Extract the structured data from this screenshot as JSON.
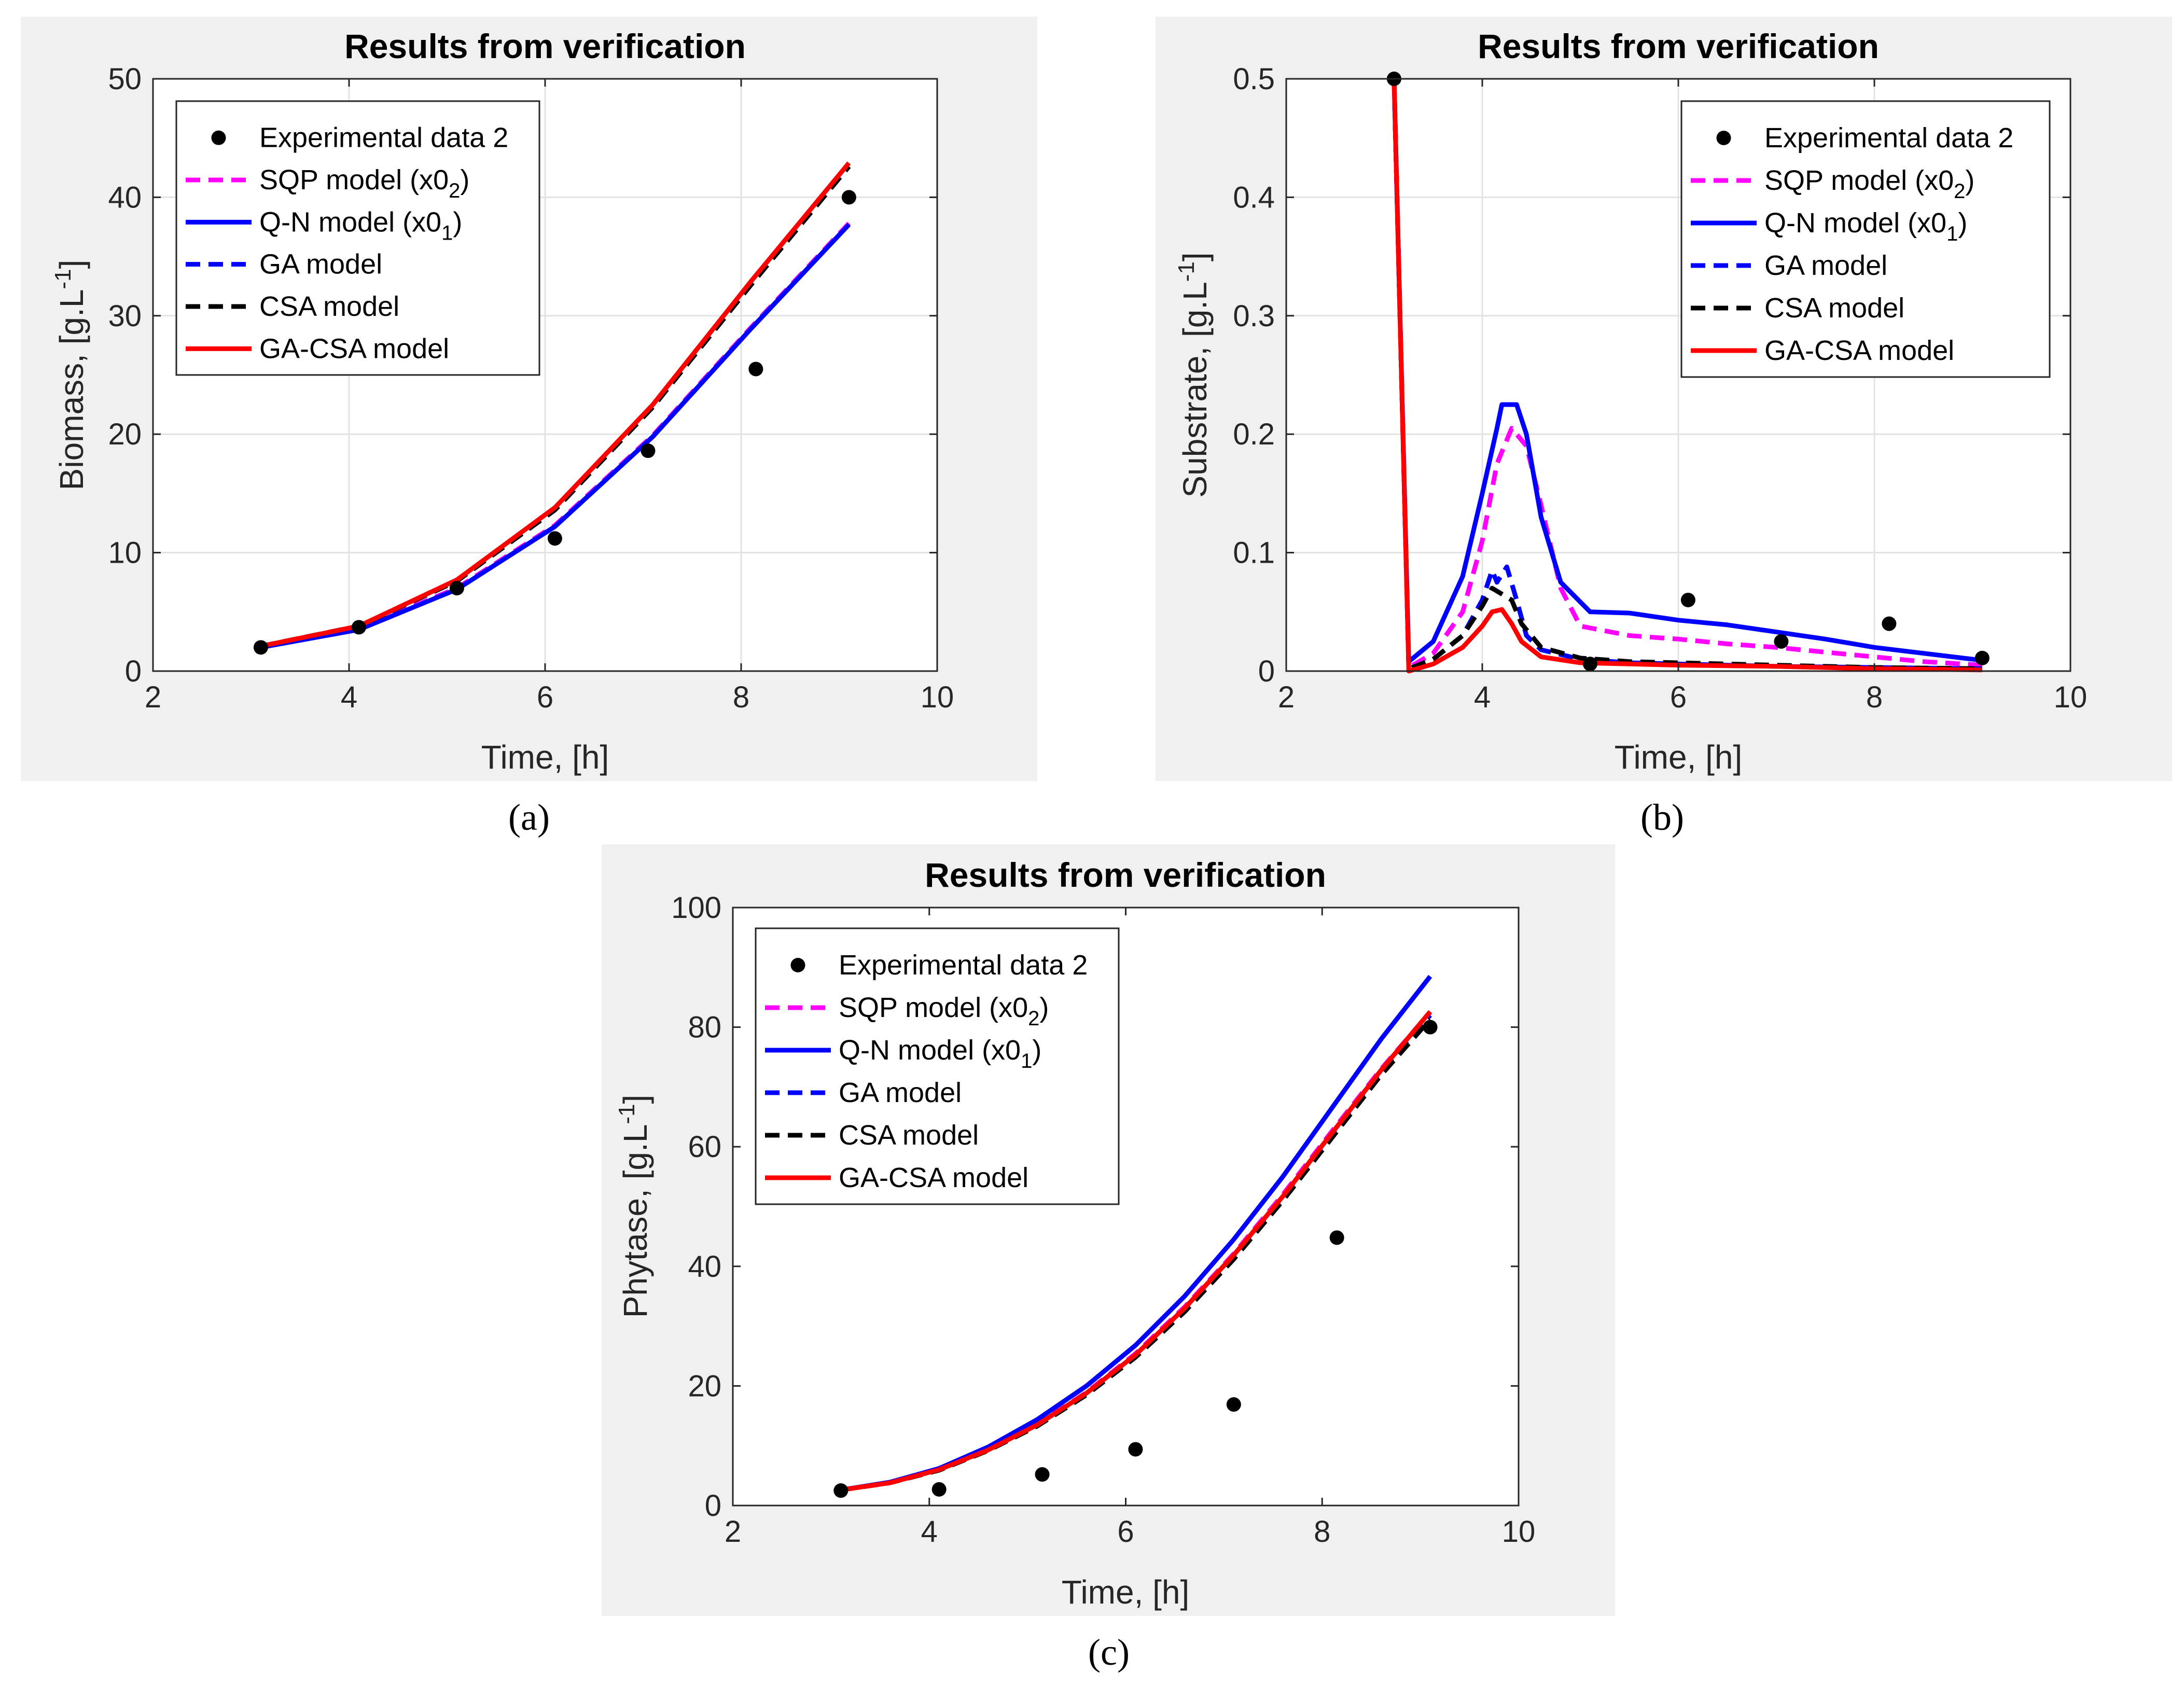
{
  "chart_data": [
    {
      "type": "line",
      "panel_label": "a",
      "title": "Results from verification",
      "xlabel": "Time, [h]",
      "ylabel": "Biomass, [g.L^-1]",
      "ylabel_text": "Biomass, [g.L",
      "ylabel_exp": "-1",
      "ylabel_close": "]",
      "xlim": [
        2,
        10
      ],
      "ylim": [
        0,
        50
      ],
      "xticks": [
        2,
        4,
        6,
        8,
        10
      ],
      "yticks": [
        0,
        10,
        20,
        30,
        40,
        50
      ],
      "grid": true,
      "legend_position": "top-left",
      "series": [
        {
          "name": "Experimental data 2",
          "style": "markers",
          "color": "#000000",
          "x": [
            3.1,
            4.1,
            5.1,
            6.1,
            7.05,
            8.15,
            9.1
          ],
          "y": [
            2.0,
            3.7,
            7.0,
            11.2,
            18.6,
            25.5,
            40.0
          ]
        },
        {
          "name": "SQP model (x0_2)",
          "style": "dashed",
          "color": "#ff00ff",
          "x": [
            3.1,
            4.1,
            5.1,
            6.1,
            7.1,
            8.1,
            9.1
          ],
          "y": [
            2.0,
            3.6,
            7.0,
            12.3,
            19.9,
            29.0,
            37.8
          ]
        },
        {
          "name": "Q-N model (x0_1)",
          "style": "solid",
          "color": "#0000ff",
          "x": [
            3.1,
            4.1,
            5.1,
            6.1,
            7.1,
            8.1,
            9.1
          ],
          "y": [
            2.0,
            3.5,
            6.9,
            12.2,
            19.8,
            28.9,
            37.7
          ]
        },
        {
          "name": "GA model",
          "style": "dashed",
          "color": "#0000ff",
          "x": [
            3.1,
            4.1,
            5.1,
            6.1,
            7.1,
            8.1,
            9.1
          ],
          "y": [
            2.1,
            3.8,
            7.6,
            13.6,
            22.3,
            32.6,
            42.6
          ]
        },
        {
          "name": "CSA model",
          "style": "dashed",
          "color": "#000000",
          "x": [
            3.1,
            4.1,
            5.1,
            6.1,
            7.1,
            8.1,
            9.1
          ],
          "y": [
            2.1,
            3.8,
            7.6,
            13.6,
            22.3,
            32.6,
            42.6
          ]
        },
        {
          "name": "GA-CSA model",
          "style": "solid",
          "color": "#ff0000",
          "x": [
            3.1,
            4.1,
            5.1,
            6.1,
            7.1,
            8.1,
            9.1
          ],
          "y": [
            2.1,
            3.8,
            7.7,
            13.8,
            22.5,
            32.9,
            42.9
          ]
        }
      ]
    },
    {
      "type": "line",
      "panel_label": "b",
      "title": "Results from verification",
      "xlabel": "Time, [h]",
      "ylabel": "Substrate, [g.L^-1]",
      "ylabel_text": "Substrate, [g.L",
      "ylabel_exp": "-1",
      "ylabel_close": "]",
      "xlim": [
        2,
        10
      ],
      "ylim": [
        0,
        0.5
      ],
      "xticks": [
        2,
        4,
        6,
        8,
        10
      ],
      "yticks": [
        0,
        0.1,
        0.2,
        0.3,
        0.4,
        0.5
      ],
      "grid": true,
      "legend_position": "top-right",
      "series": [
        {
          "name": "Experimental data 2",
          "style": "markers",
          "color": "#000000",
          "x": [
            3.1,
            5.1,
            6.1,
            7.05,
            8.15,
            9.1
          ],
          "y": [
            0.5,
            0.006,
            0.06,
            0.025,
            0.04,
            0.011
          ]
        },
        {
          "name": "SQP model (x0_2)",
          "style": "dashed",
          "color": "#ff00ff",
          "x": [
            3.1,
            3.25,
            3.5,
            3.8,
            4.0,
            4.15,
            4.3,
            4.45,
            4.6,
            4.8,
            5.0,
            5.5,
            6.0,
            6.5,
            7.0,
            7.5,
            8.0,
            8.5,
            9.1
          ],
          "y": [
            0.5,
            0.003,
            0.015,
            0.05,
            0.11,
            0.175,
            0.205,
            0.19,
            0.14,
            0.07,
            0.038,
            0.03,
            0.027,
            0.023,
            0.02,
            0.016,
            0.012,
            0.008,
            0.005
          ]
        },
        {
          "name": "Q-N model (x0_1)",
          "style": "solid",
          "color": "#0000ff",
          "x": [
            3.1,
            3.25,
            3.5,
            3.8,
            4.0,
            4.15,
            4.2,
            4.35,
            4.45,
            4.6,
            4.8,
            5.1,
            5.5,
            6.0,
            6.5,
            7.0,
            7.5,
            8.0,
            8.5,
            9.1
          ],
          "y": [
            0.5,
            0.008,
            0.025,
            0.08,
            0.15,
            0.205,
            0.225,
            0.225,
            0.2,
            0.13,
            0.075,
            0.05,
            0.049,
            0.043,
            0.039,
            0.033,
            0.027,
            0.02,
            0.015,
            0.009
          ]
        },
        {
          "name": "GA model",
          "style": "dashed",
          "color": "#0000ff",
          "x": [
            3.1,
            3.25,
            3.5,
            3.8,
            4.0,
            4.1,
            4.15,
            4.25,
            4.35,
            4.45,
            4.6,
            5.0,
            5.5,
            6.0,
            7.0,
            8.0,
            9.1
          ],
          "y": [
            0.5,
            0.002,
            0.01,
            0.03,
            0.06,
            0.085,
            0.075,
            0.088,
            0.06,
            0.03,
            0.018,
            0.01,
            0.007,
            0.006,
            0.004,
            0.003,
            0.002
          ]
        },
        {
          "name": "CSA model",
          "style": "dashed",
          "color": "#000000",
          "x": [
            3.1,
            3.25,
            3.5,
            3.8,
            4.0,
            4.1,
            4.2,
            4.3,
            4.4,
            4.6,
            5.0,
            5.5,
            6.0,
            7.0,
            8.0,
            9.1
          ],
          "y": [
            0.5,
            0.002,
            0.01,
            0.03,
            0.055,
            0.07,
            0.065,
            0.06,
            0.04,
            0.02,
            0.011,
            0.008,
            0.007,
            0.005,
            0.003,
            0.002
          ]
        },
        {
          "name": "GA-CSA model",
          "style": "solid",
          "color": "#ff0000",
          "x": [
            3.1,
            3.25,
            3.5,
            3.8,
            4.0,
            4.1,
            4.2,
            4.3,
            4.4,
            4.6,
            5.0,
            5.5,
            6.0,
            7.0,
            8.0,
            9.1
          ],
          "y": [
            0.5,
            0.0,
            0.006,
            0.02,
            0.038,
            0.05,
            0.052,
            0.04,
            0.025,
            0.012,
            0.007,
            0.006,
            0.005,
            0.004,
            0.002,
            0.001
          ]
        }
      ]
    },
    {
      "type": "line",
      "panel_label": "c",
      "title": "Results from verification",
      "xlabel": "Time, [h]",
      "ylabel": "Phytase, [g.L^-1]",
      "ylabel_text": "Phytase, [g.L",
      "ylabel_exp": "-1",
      "ylabel_close": "]",
      "xlim": [
        2,
        10
      ],
      "ylim": [
        0,
        100
      ],
      "xticks": [
        2,
        4,
        6,
        8,
        10
      ],
      "yticks": [
        0,
        20,
        40,
        60,
        80,
        100
      ],
      "grid": false,
      "legend_position": "top-left",
      "series": [
        {
          "name": "Experimental data 2",
          "style": "markers",
          "color": "#000000",
          "x": [
            3.1,
            4.1,
            5.15,
            6.1,
            7.1,
            8.15,
            9.1
          ],
          "y": [
            2.5,
            2.7,
            5.2,
            9.4,
            16.9,
            44.8,
            80.0
          ]
        },
        {
          "name": "SQP model (x0_2)",
          "style": "dashed",
          "color": "#ff00ff",
          "x": [
            3.1,
            3.6,
            4.1,
            4.6,
            5.1,
            5.6,
            6.1,
            6.6,
            7.1,
            7.6,
            8.1,
            8.6,
            9.1
          ],
          "y": [
            2.6,
            3.8,
            6.0,
            9.4,
            13.6,
            18.9,
            25.4,
            33.2,
            42.1,
            52.0,
            62.6,
            73.0,
            82.5
          ]
        },
        {
          "name": "Q-N model (x0_1)",
          "style": "solid",
          "color": "#0000ff",
          "x": [
            3.1,
            3.6,
            4.1,
            4.6,
            5.1,
            5.6,
            6.1,
            6.6,
            7.1,
            7.6,
            8.1,
            8.6,
            9.1
          ],
          "y": [
            2.6,
            3.9,
            6.2,
            9.8,
            14.4,
            20.0,
            26.8,
            35.0,
            44.5,
            55.0,
            66.5,
            78.0,
            88.5
          ]
        },
        {
          "name": "GA model",
          "style": "dashed",
          "color": "#0000ff",
          "x": [
            3.1,
            3.6,
            4.1,
            4.6,
            5.1,
            5.6,
            6.1,
            6.6,
            7.1,
            7.6,
            8.1,
            8.6,
            9.1
          ],
          "y": [
            2.6,
            3.8,
            6.0,
            9.3,
            13.5,
            18.8,
            25.2,
            32.9,
            41.8,
            51.6,
            62.2,
            72.6,
            82.0
          ]
        },
        {
          "name": "CSA model",
          "style": "dashed",
          "color": "#000000",
          "x": [
            3.1,
            3.6,
            4.1,
            4.6,
            5.1,
            5.6,
            6.1,
            6.6,
            7.1,
            7.6,
            8.1,
            8.6,
            9.1
          ],
          "y": [
            2.6,
            3.8,
            5.9,
            9.2,
            13.3,
            18.5,
            24.8,
            32.4,
            41.2,
            51.0,
            61.5,
            72.0,
            81.3
          ]
        },
        {
          "name": "GA-CSA model",
          "style": "solid",
          "color": "#ff0000",
          "x": [
            3.1,
            3.6,
            4.1,
            4.6,
            5.1,
            5.6,
            6.1,
            6.6,
            7.1,
            7.6,
            8.1,
            8.6,
            9.1
          ],
          "y": [
            2.6,
            3.8,
            6.0,
            9.3,
            13.5,
            18.8,
            25.2,
            33.0,
            41.9,
            51.7,
            62.3,
            72.8,
            82.6
          ]
        }
      ]
    }
  ],
  "panel_labels": [
    "(a)",
    "(b)",
    "(c)"
  ]
}
